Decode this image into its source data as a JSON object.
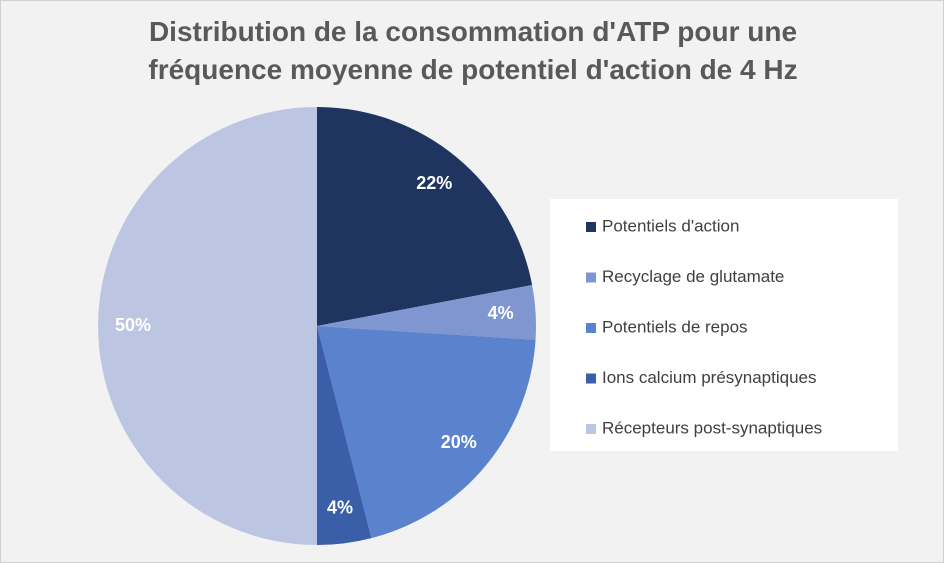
{
  "chart_data": {
    "type": "pie",
    "title": "Distribution de la consommation d'ATP pour une fréquence moyenne de potentiel d'action de 4 Hz",
    "categories": [
      "Potentiels d'action",
      "Recyclage de glutamate",
      "Potentiels de repos",
      "Ions calcium présynaptiques",
      "Récepteurs post-synaptiques"
    ],
    "values": [
      22,
      4,
      20,
      4,
      50
    ],
    "value_labels": [
      "22%",
      "4%",
      "20%",
      "4%",
      "50%"
    ],
    "colors": [
      "#1f3560",
      "#8096d0",
      "#5b83cd",
      "#3a5ea7",
      "#bcc6e3"
    ],
    "legend": "right"
  }
}
